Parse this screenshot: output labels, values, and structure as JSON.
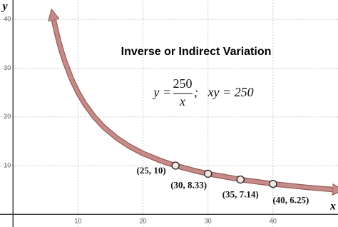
{
  "chart_data": {
    "type": "line",
    "title": "Inverse or Indirect Variation",
    "formula": {
      "lhs": "y =",
      "numerator": "250",
      "denominator": "x",
      "rest": ";   xy = 250"
    },
    "xlabel": "x",
    "ylabel": "y",
    "xlim": [
      -2,
      50
    ],
    "ylim": [
      -2.6,
      44
    ],
    "xticks": [
      10,
      20,
      30,
      40
    ],
    "yticks": [
      10,
      20,
      30,
      40
    ],
    "grid": true,
    "series": [
      {
        "color": "#c48b88",
        "x": [
          6.1,
          6.5,
          7,
          7.5,
          8,
          9,
          10,
          11,
          12.5,
          14,
          16,
          18,
          20,
          23,
          25,
          28,
          30,
          35,
          40,
          45,
          50
        ],
        "values": [
          40.98,
          38.46,
          35.71,
          33.33,
          31.25,
          27.78,
          25,
          22.73,
          20,
          17.86,
          15.63,
          13.89,
          12.5,
          10.87,
          10,
          8.93,
          8.33,
          7.14,
          6.25,
          5.56,
          5
        ]
      },
      {
        "color": "#f3e6e4",
        "marker": "circle",
        "x": [
          25,
          30,
          35,
          40
        ],
        "values": [
          10,
          8.33,
          7.14,
          6.25
        ],
        "value_labels": [
          "(25, 10)",
          "(30, 8.33)",
          "(35, 7.14)",
          "(40, 6.25)"
        ]
      }
    ]
  }
}
